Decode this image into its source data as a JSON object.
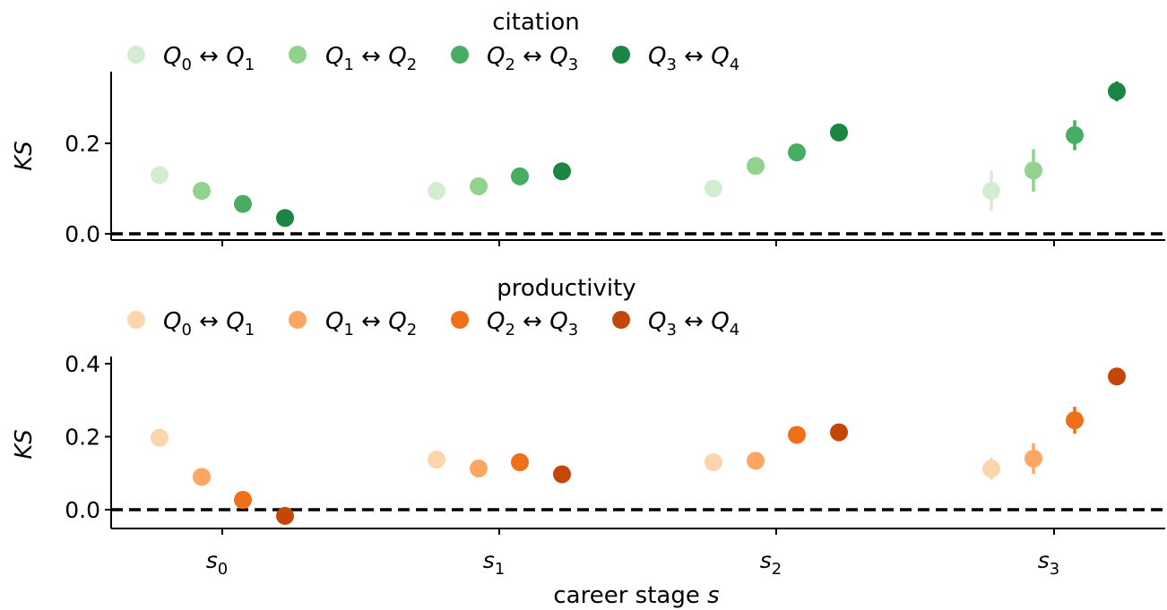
{
  "chart_data": [
    {
      "type": "scatter",
      "title": "citation",
      "ylabel": "KS",
      "xlabel": "",
      "ylim": [
        -0.02,
        0.36
      ],
      "yticks": [
        "0.0",
        "0.2"
      ],
      "ytick_values": [
        0.0,
        0.2
      ],
      "reference_line": 0.0,
      "grid": false,
      "legend_placement": "top",
      "colors": [
        "#d2edd0",
        "#91d28f",
        "#46ad62",
        "#1a8642"
      ],
      "categories": [
        "s0",
        "s1",
        "s2",
        "s3"
      ],
      "series": [
        {
          "name": "Q0↔Q1",
          "values": [
            0.13,
            0.095,
            0.1,
            0.095
          ],
          "err": [
            0.0,
            0.0,
            0.0,
            0.045
          ]
        },
        {
          "name": "Q1↔Q2",
          "values": [
            0.095,
            0.105,
            0.15,
            0.14
          ],
          "err": [
            0.0,
            0.0,
            0.0,
            0.047
          ]
        },
        {
          "name": "Q2↔Q3",
          "values": [
            0.066,
            0.127,
            0.18,
            0.218
          ],
          "err": [
            0.0,
            0.0,
            0.0,
            0.033
          ]
        },
        {
          "name": "Q3↔Q4",
          "values": [
            0.035,
            0.138,
            0.224,
            0.315
          ],
          "err": [
            0.0,
            0.0,
            0.0,
            0.022
          ]
        }
      ]
    },
    {
      "type": "scatter",
      "title": "productivity",
      "ylabel": "KS",
      "xlabel": "career stage s",
      "ylim": [
        -0.05,
        0.42
      ],
      "yticks": [
        "0.0",
        "0.2",
        "0.4"
      ],
      "ytick_values": [
        0.0,
        0.2,
        0.4
      ],
      "reference_line": 0.0,
      "grid": false,
      "legend_placement": "top",
      "colors": [
        "#fdd5ac",
        "#fda762",
        "#f0701a",
        "#c4470a"
      ],
      "categories": [
        "s0",
        "s1",
        "s2",
        "s3"
      ],
      "series": [
        {
          "name": "Q0↔Q1",
          "values": [
            0.197,
            0.137,
            0.13,
            0.112
          ],
          "err": [
            0.0,
            0.0,
            0.0,
            0.03
          ]
        },
        {
          "name": "Q1↔Q2",
          "values": [
            0.09,
            0.113,
            0.134,
            0.14
          ],
          "err": [
            0.0,
            0.0,
            0.0,
            0.042
          ]
        },
        {
          "name": "Q2↔Q3",
          "values": [
            0.027,
            0.13,
            0.205,
            0.245
          ],
          "err": [
            0.0,
            0.0,
            0.0,
            0.037
          ]
        },
        {
          "name": "Q3↔Q4",
          "values": [
            -0.017,
            0.097,
            0.212,
            0.365
          ],
          "err": [
            0.0,
            0.0,
            0.0,
            0.0
          ]
        }
      ]
    }
  ]
}
